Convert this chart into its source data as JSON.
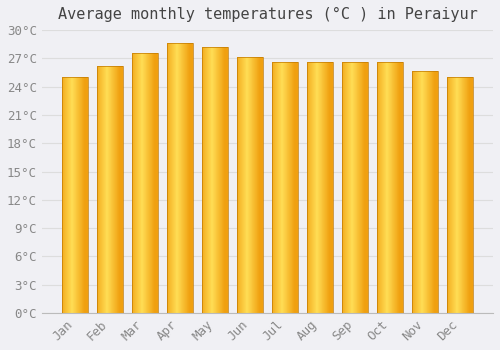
{
  "title": "Average monthly temperatures (°C ) in Peraiyur",
  "months": [
    "Jan",
    "Feb",
    "Mar",
    "Apr",
    "May",
    "Jun",
    "Jul",
    "Aug",
    "Sep",
    "Oct",
    "Nov",
    "Dec"
  ],
  "values": [
    25.0,
    26.2,
    27.6,
    28.6,
    28.2,
    27.1,
    26.6,
    26.6,
    26.6,
    26.6,
    25.7,
    25.0
  ],
  "bar_color_left": "#F0A000",
  "bar_color_center": "#FFD84C",
  "bar_color_right": "#E09000",
  "bar_border_color": "#C07800",
  "background_color": "#F0F0F4",
  "grid_color": "#DDDDDD",
  "ylim": [
    0,
    30
  ],
  "yticks": [
    0,
    3,
    6,
    9,
    12,
    15,
    18,
    21,
    24,
    27,
    30
  ],
  "ytick_labels": [
    "0°C",
    "3°C",
    "6°C",
    "9°C",
    "12°C",
    "15°C",
    "18°C",
    "21°C",
    "24°C",
    "27°C",
    "30°C"
  ],
  "font_family": "monospace",
  "title_fontsize": 11,
  "tick_fontsize": 9,
  "bar_width": 0.72
}
